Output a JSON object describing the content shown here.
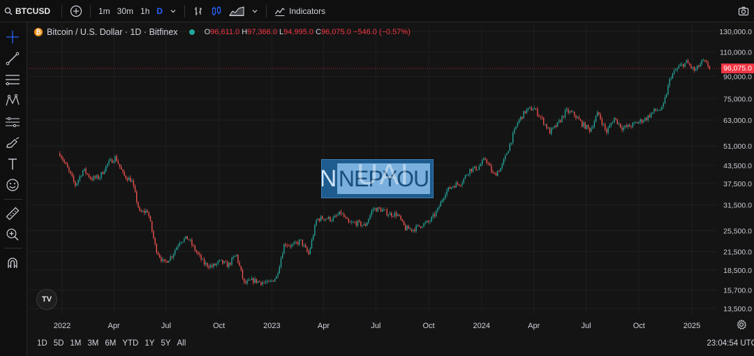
{
  "toolbar": {
    "symbol": "BTCUSD",
    "intervals": [
      "1m",
      "30m",
      "1h",
      "D"
    ],
    "active_interval": "D",
    "indicators_label": "Indicators"
  },
  "legend": {
    "title": "Bitcoin / U.S. Dollar · 1D · Bitfinex",
    "open_key": "O",
    "open": "96,611.0",
    "high_key": "H",
    "high": "97,366.0",
    "low_key": "L",
    "low": "94,995.0",
    "close_key": "C",
    "close": "96,075.0",
    "change": "−546.0 (−0.57%)"
  },
  "watermark": {
    "letter": "N",
    "text": "NEPYOU",
    "ghost": "UAI"
  },
  "logo": {
    "text": "TV"
  },
  "current_price": "96,075.0",
  "ranges": [
    "1D",
    "5D",
    "1M",
    "3M",
    "6M",
    "YTD",
    "1Y",
    "5Y",
    "All"
  ],
  "clock": "23:04:54 UTC",
  "colors": {
    "up": "#26a69a",
    "down": "#ef5350",
    "accent": "#2962ff",
    "price_tag": "#f23645"
  },
  "chart_data": {
    "type": "candlestick",
    "scale": "log",
    "y_ticks": [
      130000,
      110000,
      90000,
      75000,
      63000,
      51000,
      43500,
      37500,
      31500,
      25500,
      21500,
      18500,
      15700,
      13500
    ],
    "y_tick_labels": [
      "130,000.0",
      "110,000.0",
      "90,000.0",
      "75,000.0",
      "63,000.0",
      "51,000.0",
      "43,500.0",
      "37,500.0",
      "31,500.0",
      "25,500.0",
      "21,500.0",
      "18,500.0",
      "15,700.0",
      "13,500.0"
    ],
    "x_tick_labels": [
      "2022",
      "Apr",
      "Jul",
      "Oct",
      "2023",
      "Apr",
      "Jul",
      "Oct",
      "2024",
      "Apr",
      "Jul",
      "Oct",
      "2025"
    ],
    "x_tick_dates": [
      "2022-01-01",
      "2022-04-01",
      "2022-07-01",
      "2022-10-01",
      "2023-01-01",
      "2023-04-01",
      "2023-07-01",
      "2023-10-01",
      "2024-01-01",
      "2024-04-01",
      "2024-07-01",
      "2024-10-01",
      "2025-01-01"
    ],
    "x_range": [
      "2021-12-28",
      "2025-02-03"
    ],
    "y_range": [
      12000,
      140000
    ],
    "series": [
      {
        "dates": [
          "2021-12-28",
          "2022-01-10",
          "2022-01-24",
          "2022-02-07",
          "2022-02-21",
          "2022-03-07",
          "2022-03-21",
          "2022-04-04",
          "2022-04-18",
          "2022-05-02",
          "2022-05-16",
          "2022-05-30",
          "2022-06-13",
          "2022-06-27",
          "2022-07-11",
          "2022-07-25",
          "2022-08-08",
          "2022-08-22",
          "2022-09-05",
          "2022-09-19",
          "2022-10-03",
          "2022-10-17",
          "2022-10-31",
          "2022-11-14",
          "2022-11-28",
          "2022-12-12",
          "2022-12-26",
          "2023-01-09",
          "2023-01-23",
          "2023-02-06",
          "2023-02-20",
          "2023-03-06",
          "2023-03-20",
          "2023-04-03",
          "2023-04-17",
          "2023-05-01",
          "2023-05-15",
          "2023-05-29",
          "2023-06-12",
          "2023-06-26",
          "2023-07-10",
          "2023-07-24",
          "2023-08-07",
          "2023-08-21",
          "2023-09-04",
          "2023-09-18",
          "2023-10-02",
          "2023-10-16",
          "2023-10-30",
          "2023-11-13",
          "2023-11-27",
          "2023-12-11",
          "2023-12-25",
          "2024-01-08",
          "2024-01-22",
          "2024-02-05",
          "2024-02-19",
          "2024-03-04",
          "2024-03-18",
          "2024-04-01",
          "2024-04-15",
          "2024-04-29",
          "2024-05-13",
          "2024-05-27",
          "2024-06-10",
          "2024-06-24",
          "2024-07-08",
          "2024-07-22",
          "2024-08-05",
          "2024-08-19",
          "2024-09-02",
          "2024-09-16",
          "2024-09-30",
          "2024-10-14",
          "2024-10-28",
          "2024-11-11",
          "2024-11-25",
          "2024-12-09",
          "2024-12-23",
          "2025-01-06",
          "2025-01-20",
          "2025-02-03"
        ],
        "close": [
          48000,
          42500,
          37000,
          42000,
          39000,
          39500,
          44000,
          46500,
          40000,
          38500,
          29500,
          30000,
          22000,
          19500,
          20800,
          23500,
          24000,
          21500,
          19500,
          19000,
          19800,
          19200,
          21000,
          16500,
          17000,
          16800,
          16550,
          17500,
          23000,
          22500,
          23500,
          21000,
          28000,
          28300,
          28000,
          29500,
          27000,
          27200,
          26500,
          30500,
          30300,
          29200,
          29200,
          26000,
          25800,
          26700,
          27400,
          30000,
          35000,
          37000,
          37800,
          42000,
          42500,
          46000,
          40000,
          43000,
          51500,
          62000,
          68000,
          69500,
          63500,
          57000,
          61000,
          67800,
          66000,
          61000,
          58000,
          67000,
          57000,
          64000,
          59000,
          60000,
          62000,
          64000,
          68000,
          69000,
          90000,
          97000,
          101000,
          94000,
          102000,
          96075
        ]
      }
    ]
  }
}
